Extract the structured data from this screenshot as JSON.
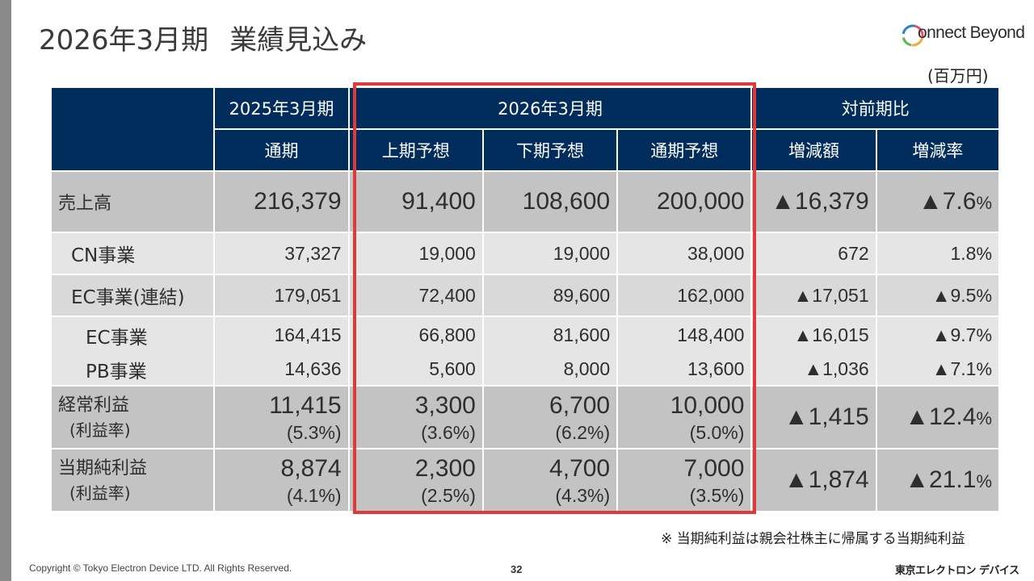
{
  "slide": {
    "title_period": "2026年3月期",
    "title_main": "業績見込み",
    "logo_text": "onnect Beyond",
    "unit": "(百万円)",
    "note": "※ 当期純利益は親会社株主に帰属する当期純利益",
    "copyright": "Copyright © Tokyo Electron Device LTD. All Rights Reserved.",
    "page_number": "32",
    "company_name": "東京エレクトロン デバイス"
  },
  "table": {
    "header": {
      "group_2025": "2025年3月期",
      "group_2026": "2026年3月期",
      "group_yoy": "対前期比",
      "col_full_2025": "通期",
      "col_h1_forecast": "上期予想",
      "col_h2_forecast": "下期予想",
      "col_full_forecast": "通期予想",
      "col_change_amount": "増減額",
      "col_change_rate": "増減率"
    },
    "rows": {
      "sales": {
        "label": "売上高",
        "fy2025": "216,379",
        "h1": "91,400",
        "h2": "108,600",
        "fy2026": "200,000",
        "change": "▲16,379",
        "rate": "▲7.6",
        "rate_unit": "%"
      },
      "cn": {
        "label": "CN事業",
        "fy2025": "37,327",
        "h1": "19,000",
        "h2": "19,000",
        "fy2026": "38,000",
        "change": "672",
        "rate": "1.8",
        "rate_unit": "%"
      },
      "ec_consolidated": {
        "label": "EC事業(連結)",
        "fy2025": "179,051",
        "h1": "72,400",
        "h2": "89,600",
        "fy2026": "162,000",
        "change": "▲17,051",
        "rate": "▲9.5",
        "rate_unit": "%"
      },
      "ec": {
        "label": "EC事業",
        "fy2025": "164,415",
        "h1": "66,800",
        "h2": "81,600",
        "fy2026": "148,400",
        "change": "▲16,015",
        "rate": "▲9.7",
        "rate_unit": "%"
      },
      "pb": {
        "label": "PB事業",
        "fy2025": "14,636",
        "h1": "5,600",
        "h2": "8,000",
        "fy2026": "13,600",
        "change": "▲1,036",
        "rate": "▲7.1",
        "rate_unit": "%"
      },
      "ordinary_profit": {
        "label": "経常利益",
        "sublabel": "(利益率)",
        "fy2025": "11,415",
        "fy2025_margin": "(5.3%)",
        "h1": "3,300",
        "h1_margin": "(3.6%)",
        "h2": "6,700",
        "h2_margin": "(6.2%)",
        "fy2026": "10,000",
        "fy2026_margin": "(5.0%)",
        "change": "▲1,415",
        "rate": "▲12.4",
        "rate_unit": "%"
      },
      "net_income": {
        "label": "当期純利益",
        "sublabel": "(利益率)",
        "fy2025": "8,874",
        "fy2025_margin": "(4.1%)",
        "h1": "2,300",
        "h1_margin": "(2.5%)",
        "h2": "4,700",
        "h2_margin": "(4.3%)",
        "fy2026": "7,000",
        "fy2026_margin": "(3.5%)",
        "change": "▲1,874",
        "rate": "▲21.1",
        "rate_unit": "%"
      }
    }
  },
  "colors": {
    "header_bg": "#002d5b",
    "highlight_border": "#e0393a",
    "row_dark": "#c3c3c3",
    "row_light": "#e5e5e5"
  }
}
